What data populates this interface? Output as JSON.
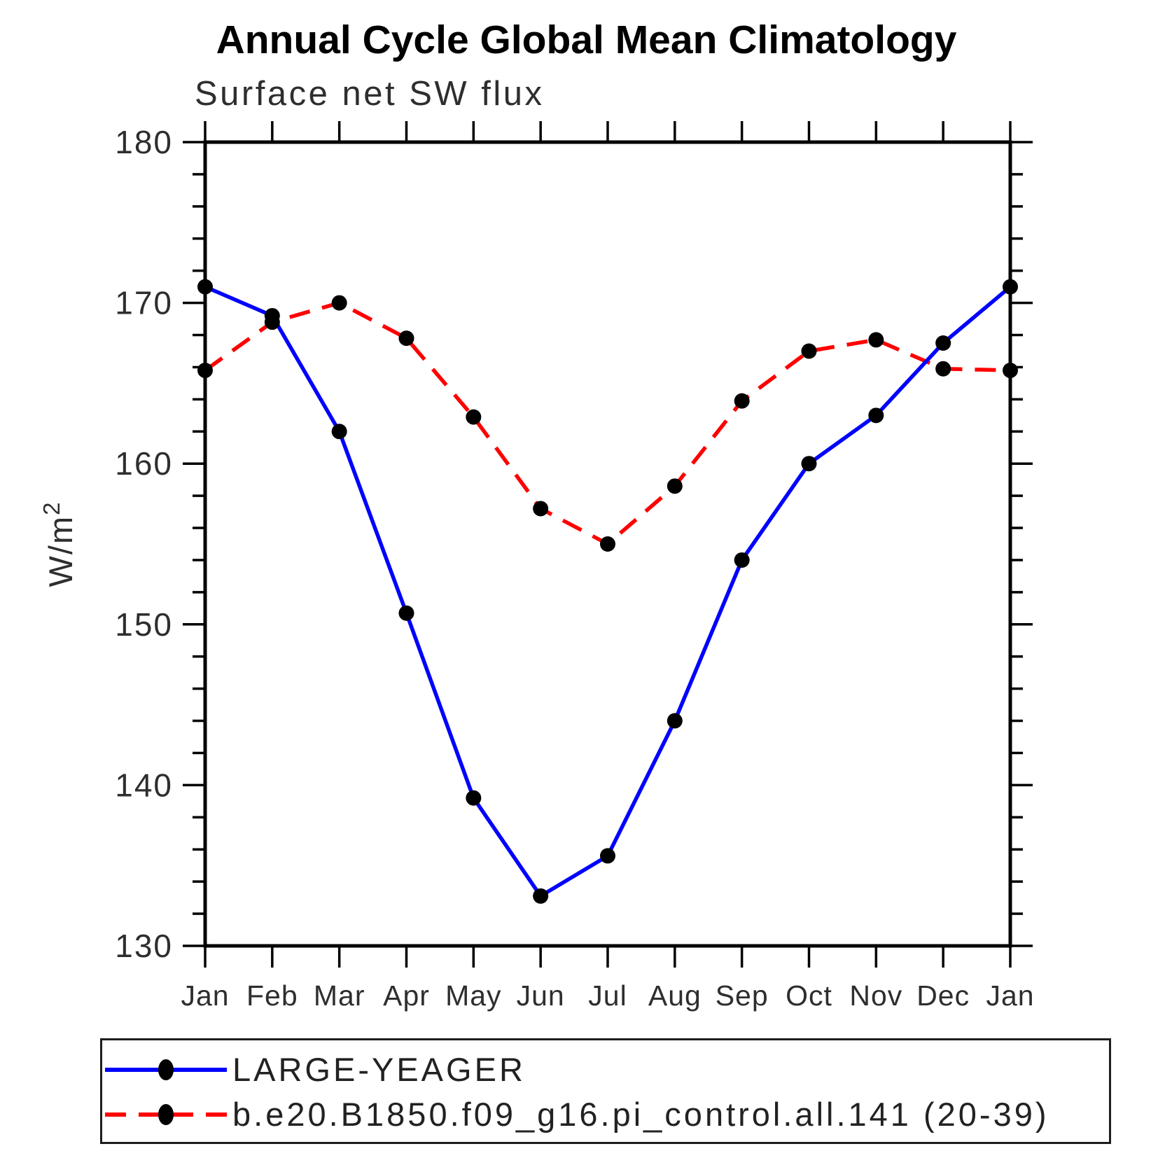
{
  "page": {
    "background": "#ffffff"
  },
  "chart_data": {
    "type": "line",
    "title": "Annual Cycle Global Mean Climatology",
    "subtitle": "Surface net SW flux",
    "ylabel": "W/m²",
    "ylabel_parts": {
      "base": "W/m",
      "sup": "2"
    },
    "categories": [
      "Jan",
      "Feb",
      "Mar",
      "Apr",
      "May",
      "Jun",
      "Jul",
      "Aug",
      "Sep",
      "Oct",
      "Nov",
      "Dec",
      "Jan"
    ],
    "ylim": [
      130,
      180
    ],
    "y_major_step": 10,
    "y_minor_step": 2,
    "y_major_ticks": [
      130,
      140,
      150,
      160,
      170,
      180
    ],
    "grid": false,
    "legend_position": "bottom-left-box",
    "axis_color": "#000000",
    "marker_color": "#000000",
    "series": [
      {
        "name": "LARGE-YEAGER",
        "color": "#0000ff",
        "line_style": "solid",
        "marker": "filled-black-circle",
        "values": [
          171.0,
          169.2,
          162.0,
          150.7,
          139.2,
          133.1,
          135.6,
          144.0,
          154.0,
          160.0,
          163.0,
          167.5,
          171.0
        ]
      },
      {
        "name": "b.e20.B1850.f09_g16.pi_control.all.141 (20-39)",
        "color": "#ff0000",
        "line_style": "dashed",
        "marker": "filled-black-circle",
        "values": [
          165.8,
          168.8,
          170.0,
          167.8,
          162.9,
          157.2,
          155.0,
          158.6,
          163.9,
          167.0,
          167.7,
          165.9,
          165.8
        ]
      }
    ]
  }
}
